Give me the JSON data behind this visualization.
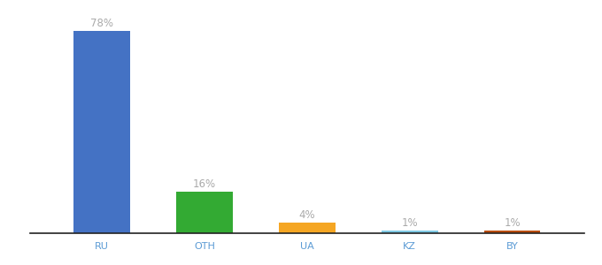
{
  "categories": [
    "RU",
    "OTH",
    "UA",
    "KZ",
    "BY"
  ],
  "values": [
    78,
    16,
    4,
    1,
    1
  ],
  "bar_colors": [
    "#4472c4",
    "#33aa33",
    "#f5a623",
    "#7ec8e3",
    "#b84c0a"
  ],
  "labels": [
    "78%",
    "16%",
    "4%",
    "1%",
    "1%"
  ],
  "label_color": "#aaaaaa",
  "background_color": "#ffffff",
  "ylim": [
    0,
    87
  ],
  "bar_width": 0.55,
  "label_fontsize": 8.5,
  "tick_fontsize": 8,
  "tick_color": "#5b9bd5",
  "bottom_spine_color": "#222222",
  "figsize": [
    6.8,
    3.0
  ],
  "dpi": 100
}
